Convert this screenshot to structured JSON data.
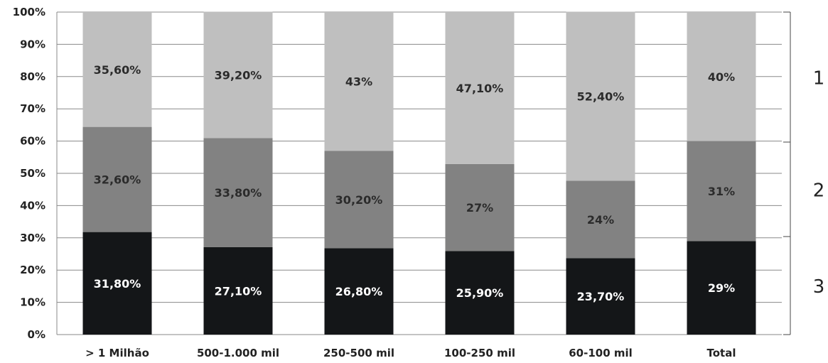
{
  "chart_data": {
    "type": "bar",
    "stacked": true,
    "categories": [
      "> 1 Milhão",
      "500-1.000 mil",
      "250-500 mil",
      "100-250 mil",
      "60-100 mil",
      "Total"
    ],
    "series": [
      {
        "values": [
          31.8,
          27.1,
          26.8,
          25.9,
          23.7,
          29
        ],
        "labels": [
          "31,80%",
          "27,10%",
          "26,80%",
          "25,90%",
          "23,70%",
          "29%"
        ],
        "color": "#141618",
        "label_color": "#ffffff"
      },
      {
        "values": [
          32.6,
          33.8,
          30.2,
          27,
          24,
          31
        ],
        "labels": [
          "32,60%",
          "33,80%",
          "30,20%",
          "27%",
          "24%",
          "31%"
        ],
        "color": "#828282",
        "label_color": "#2b2b2b"
      },
      {
        "values": [
          35.6,
          39.2,
          43,
          47.1,
          52.4,
          40
        ],
        "labels": [
          "35,60%",
          "39,20%",
          "43%",
          "47,10%",
          "52,40%",
          "40%"
        ],
        "color": "#bfbfbf",
        "label_color": "#2b2b2b"
      }
    ],
    "ylim": [
      0,
      100
    ],
    "yticks": [
      "0%",
      "10%",
      "20%",
      "30%",
      "40%",
      "50%",
      "60%",
      "70%",
      "80%",
      "90%",
      "100%"
    ],
    "grid": true,
    "right_axis_labels": [
      "1",
      "2",
      "3"
    ]
  }
}
